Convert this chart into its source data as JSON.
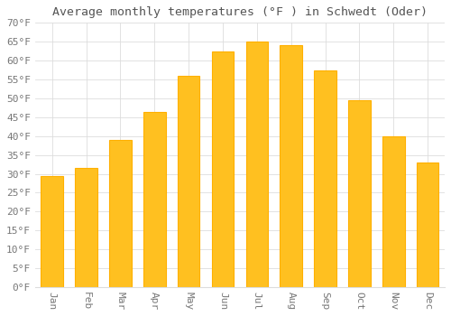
{
  "title": "Average monthly temperatures (°F ) in Schwedt (Oder)",
  "months": [
    "Jan",
    "Feb",
    "Mar",
    "Apr",
    "May",
    "Jun",
    "Jul",
    "Aug",
    "Sep",
    "Oct",
    "Nov",
    "Dec"
  ],
  "values": [
    29.3,
    31.5,
    39.0,
    46.5,
    56.0,
    62.5,
    65.0,
    64.0,
    57.5,
    49.5,
    40.0,
    33.0
  ],
  "bar_color": "#FFC020",
  "bar_edge_color": "#FFB000",
  "background_color": "#FFFFFF",
  "grid_color": "#DDDDDD",
  "text_color": "#777777",
  "title_color": "#555555",
  "ylim": [
    0,
    70
  ],
  "ytick_step": 5,
  "title_fontsize": 9.5,
  "tick_fontsize": 8.0
}
